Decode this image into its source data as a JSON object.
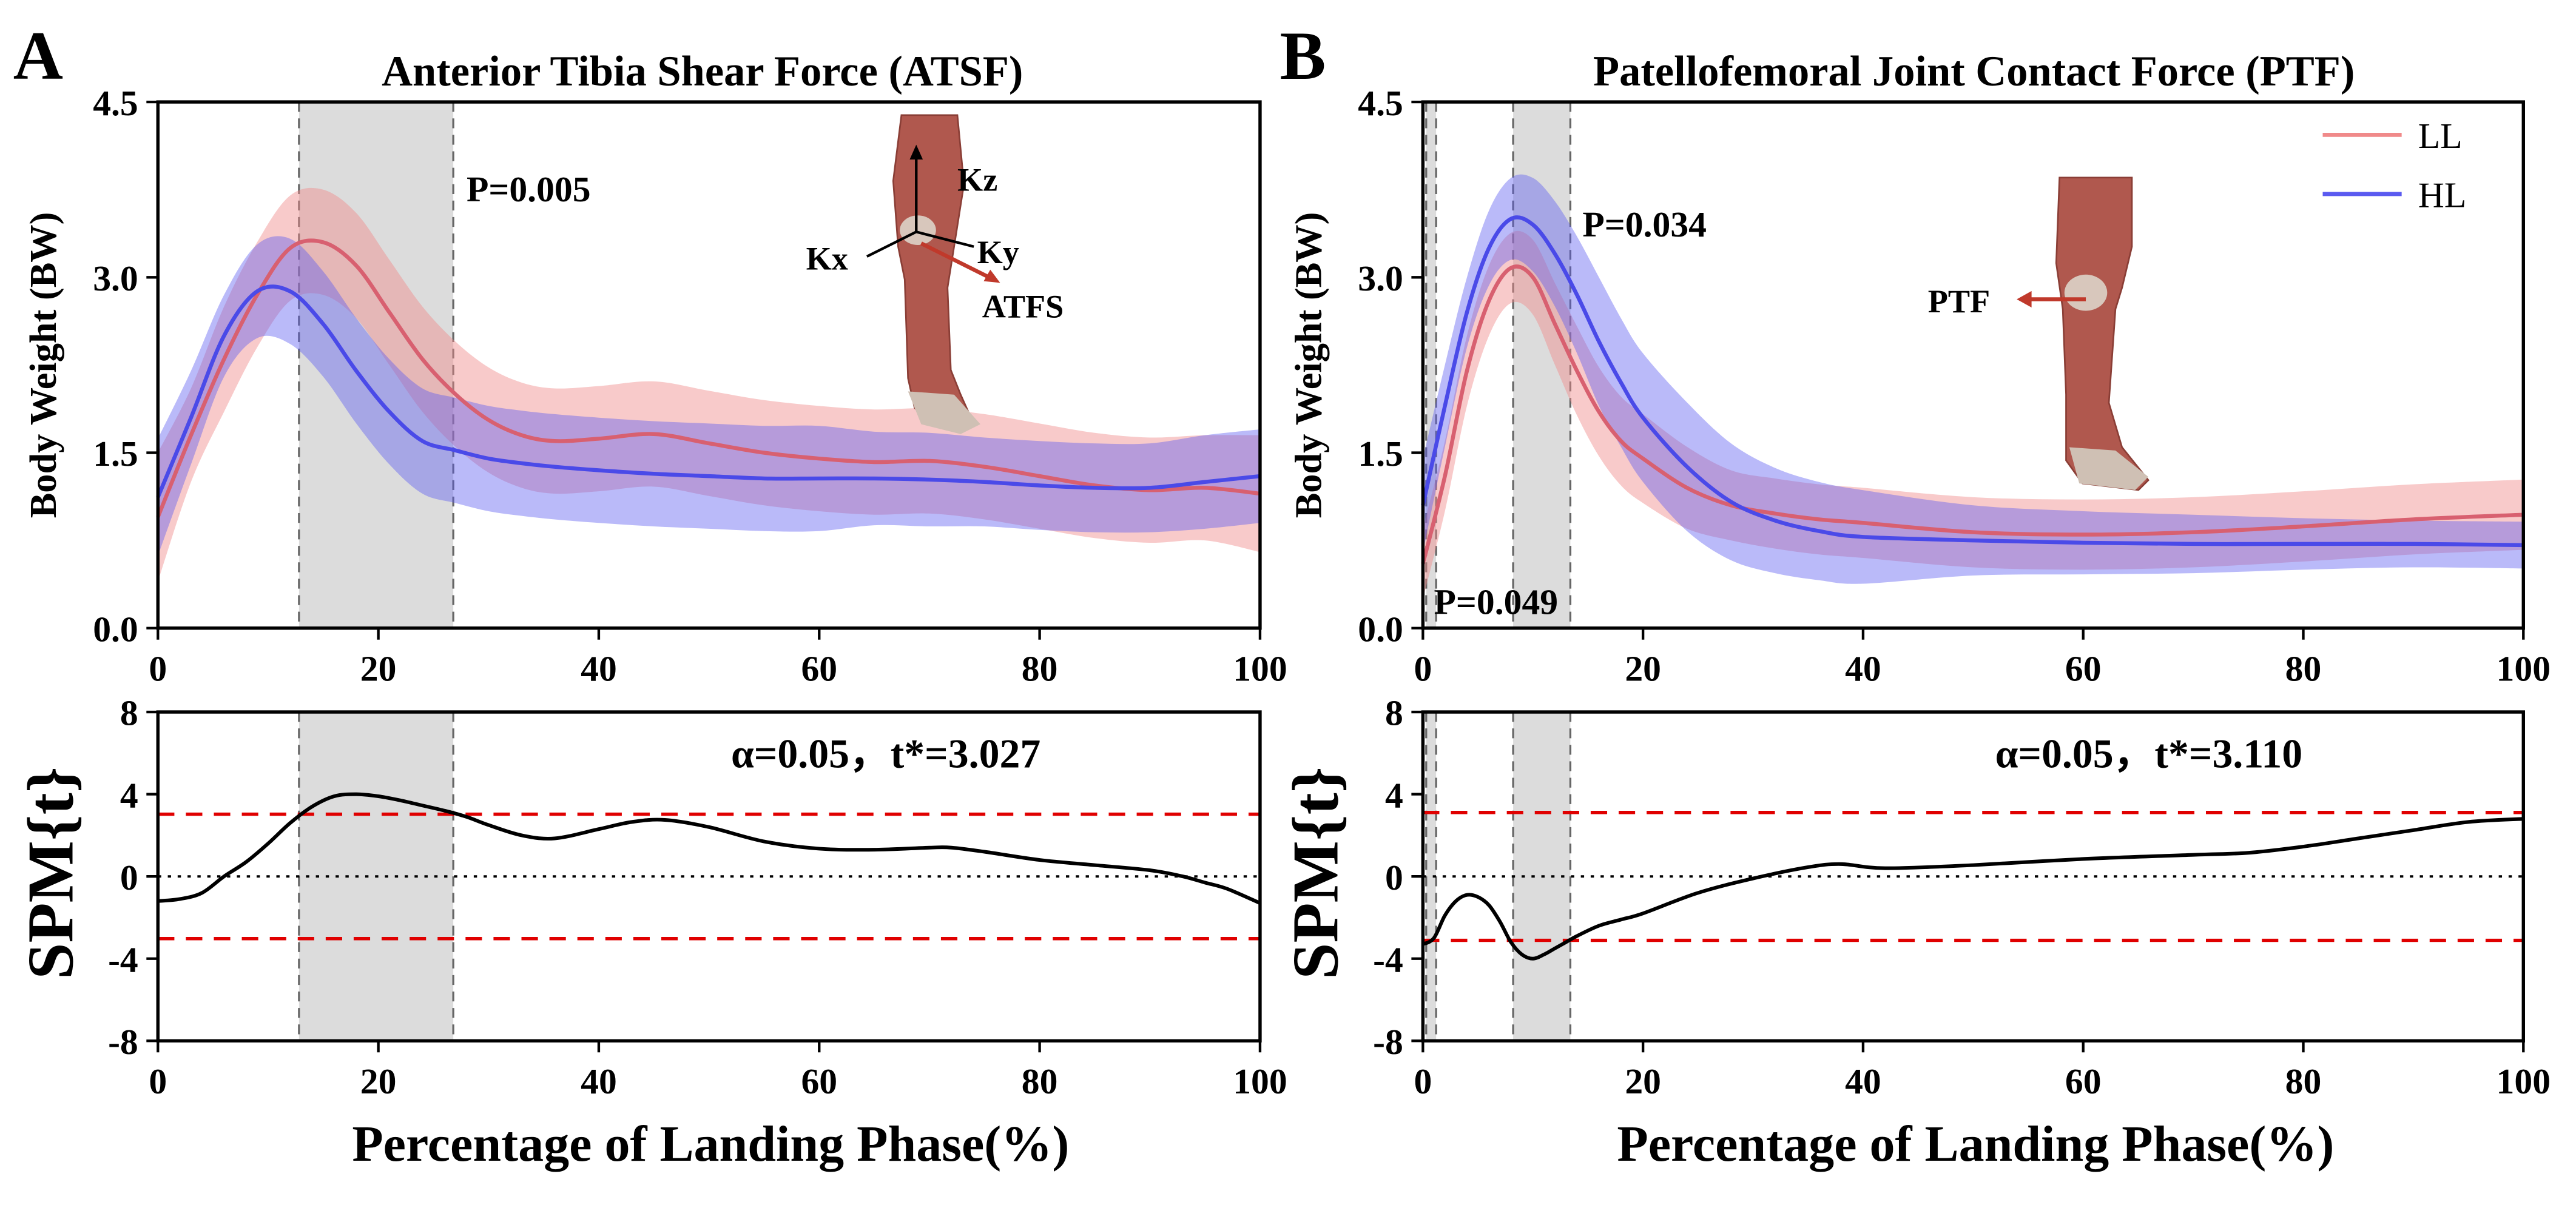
{
  "figure": {
    "left_panel_letter": "A",
    "right_panel_letter": "B",
    "x_axis_label": "Percentage of Landing Phase(%)",
    "y_axis_label_force": "Body Weight (BW)",
    "y_axis_label_spm": "SPM{t}",
    "legend": [
      {
        "name": "LL",
        "color": "#f08a8a"
      },
      {
        "name": "HL",
        "color": "#5a5af0"
      }
    ],
    "threshold_color": "#e00000",
    "shade_color": "#dcdcdc"
  },
  "chart_data": [
    {
      "type": "line",
      "panel": "A",
      "title": "Anterior Tibia Shear Force (ATSF)",
      "xlabel": "",
      "ylabel": "Body Weight (BW)",
      "xlim": [
        0,
        100
      ],
      "ylim": [
        0,
        4.5
      ],
      "xticks": [
        0,
        20,
        40,
        60,
        80,
        100
      ],
      "yticks": [
        0.0,
        1.5,
        3.0,
        4.5
      ],
      "ytick_labels": [
        "0.0",
        "1.5",
        "3.0",
        "4.5"
      ],
      "shaded_regions": [
        [
          12.8,
          26.8
        ]
      ],
      "annotations": [
        {
          "text": "P=0.005",
          "x": 28,
          "y": 3.65
        }
      ],
      "inset": {
        "labels": [
          "Kz",
          "Kx",
          "Ky",
          "ATFS"
        ]
      },
      "series": [
        {
          "name": "LL",
          "x": [
            0,
            3,
            6,
            9,
            12,
            15,
            18,
            21,
            24,
            27,
            30,
            33,
            36,
            40,
            45,
            50,
            55,
            60,
            65,
            70,
            75,
            80,
            85,
            90,
            95,
            100
          ],
          "mean": [
            0.95,
            1.65,
            2.3,
            2.85,
            3.25,
            3.3,
            3.1,
            2.7,
            2.3,
            2.0,
            1.78,
            1.65,
            1.6,
            1.62,
            1.66,
            1.58,
            1.5,
            1.45,
            1.42,
            1.43,
            1.38,
            1.3,
            1.22,
            1.18,
            1.2,
            1.15
          ],
          "sd": [
            0.55,
            0.4,
            0.45,
            0.45,
            0.45,
            0.45,
            0.45,
            0.45,
            0.45,
            0.45,
            0.45,
            0.45,
            0.45,
            0.45,
            0.45,
            0.45,
            0.45,
            0.45,
            0.45,
            0.45,
            0.45,
            0.45,
            0.45,
            0.45,
            0.45,
            0.5
          ]
        },
        {
          "name": "HL",
          "x": [
            0,
            3,
            6,
            9,
            12,
            15,
            18,
            21,
            24,
            27,
            30,
            33,
            36,
            40,
            45,
            50,
            55,
            60,
            65,
            70,
            75,
            80,
            85,
            90,
            95,
            100
          ],
          "mean": [
            1.12,
            1.8,
            2.5,
            2.88,
            2.88,
            2.6,
            2.2,
            1.85,
            1.6,
            1.52,
            1.45,
            1.41,
            1.38,
            1.35,
            1.32,
            1.3,
            1.28,
            1.28,
            1.28,
            1.27,
            1.25,
            1.22,
            1.2,
            1.2,
            1.25,
            1.3
          ],
          "sd": [
            0.5,
            0.4,
            0.35,
            0.4,
            0.45,
            0.45,
            0.45,
            0.45,
            0.45,
            0.45,
            0.45,
            0.45,
            0.45,
            0.45,
            0.45,
            0.45,
            0.45,
            0.45,
            0.4,
            0.4,
            0.38,
            0.38,
            0.38,
            0.38,
            0.4,
            0.4
          ]
        }
      ]
    },
    {
      "type": "line",
      "panel": "B",
      "title": "Patellofemoral Joint Contact Force (PTF)",
      "xlabel": "",
      "ylabel": "Body Weight (BW)",
      "xlim": [
        0,
        100
      ],
      "ylim": [
        0,
        4.5
      ],
      "xticks": [
        0,
        20,
        40,
        60,
        80,
        100
      ],
      "yticks": [
        0.0,
        1.5,
        3.0,
        4.5
      ],
      "ytick_labels": [
        "0.0",
        "1.5",
        "3.0",
        "4.5"
      ],
      "shaded_regions": [
        [
          0.3,
          1.2
        ],
        [
          8.2,
          13.4
        ]
      ],
      "annotations": [
        {
          "text": "P=0.034",
          "x": 14.5,
          "y": 3.35
        },
        {
          "text": "P=0.049",
          "x": 1.0,
          "y": 0.12
        }
      ],
      "inset": {
        "labels": [
          "PTF"
        ]
      },
      "series": [
        {
          "name": "LL",
          "x": [
            0,
            2,
            4,
            6,
            8,
            10,
            12,
            14,
            16,
            18,
            20,
            24,
            28,
            32,
            36,
            40,
            50,
            60,
            70,
            80,
            90,
            100
          ],
          "mean": [
            0.55,
            1.3,
            2.2,
            2.8,
            3.08,
            3.0,
            2.6,
            2.2,
            1.85,
            1.6,
            1.45,
            1.2,
            1.05,
            0.98,
            0.93,
            0.9,
            0.82,
            0.8,
            0.82,
            0.87,
            0.93,
            0.97
          ],
          "sd": [
            0.3,
            0.3,
            0.3,
            0.3,
            0.3,
            0.32,
            0.35,
            0.38,
            0.38,
            0.38,
            0.38,
            0.35,
            0.3,
            0.3,
            0.3,
            0.3,
            0.3,
            0.3,
            0.3,
            0.3,
            0.3,
            0.3
          ]
        },
        {
          "name": "HL",
          "x": [
            0,
            2,
            4,
            6,
            8,
            10,
            12,
            14,
            16,
            18,
            20,
            24,
            28,
            32,
            36,
            40,
            50,
            60,
            70,
            80,
            90,
            100
          ],
          "mean": [
            1.05,
            1.9,
            2.7,
            3.25,
            3.5,
            3.45,
            3.2,
            2.85,
            2.45,
            2.1,
            1.8,
            1.38,
            1.08,
            0.92,
            0.83,
            0.78,
            0.75,
            0.73,
            0.72,
            0.72,
            0.72,
            0.71
          ],
          "sd": [
            0.4,
            0.35,
            0.3,
            0.32,
            0.35,
            0.4,
            0.45,
            0.5,
            0.55,
            0.55,
            0.55,
            0.55,
            0.5,
            0.45,
            0.42,
            0.4,
            0.3,
            0.27,
            0.25,
            0.22,
            0.2,
            0.2
          ]
        }
      ]
    },
    {
      "type": "line",
      "panel": "A",
      "title": "",
      "xlabel": "Percentage of Landing Phase(%)",
      "ylabel": "SPM{t}",
      "xlim": [
        0,
        100
      ],
      "ylim": [
        -8,
        8
      ],
      "xticks": [
        0,
        20,
        40,
        60,
        80,
        100
      ],
      "yticks": [
        -8,
        -4,
        0,
        4,
        8
      ],
      "threshold": 3.027,
      "threshold_text": "α=0.05，t*=3.027",
      "shaded_regions": [
        [
          12.8,
          26.8
        ]
      ],
      "series": [
        {
          "name": "SPM{t}",
          "x": [
            0,
            2,
            4,
            6,
            8,
            10,
            12,
            14,
            16,
            18,
            20,
            22,
            24,
            26,
            28,
            30,
            33,
            36,
            40,
            43,
            46,
            50,
            55,
            60,
            65,
            70,
            72,
            75,
            80,
            85,
            90,
            93,
            95,
            97,
            100
          ],
          "values": [
            -1.2,
            -1.1,
            -0.8,
            0.0,
            0.7,
            1.6,
            2.6,
            3.4,
            3.9,
            4.0,
            3.9,
            3.7,
            3.45,
            3.2,
            2.9,
            2.5,
            2.0,
            1.85,
            2.3,
            2.65,
            2.75,
            2.4,
            1.7,
            1.35,
            1.3,
            1.4,
            1.4,
            1.2,
            0.8,
            0.55,
            0.3,
            0.0,
            -0.3,
            -0.6,
            -1.3
          ]
        }
      ]
    },
    {
      "type": "line",
      "panel": "B",
      "title": "",
      "xlabel": "Percentage of Landing Phase(%)",
      "ylabel": "SPM{t}",
      "xlim": [
        0,
        100
      ],
      "ylim": [
        -8,
        8
      ],
      "xticks": [
        0,
        20,
        40,
        60,
        80,
        100
      ],
      "yticks": [
        -8,
        -4,
        0,
        4,
        8
      ],
      "threshold": 3.11,
      "threshold_text": "α=0.05，t*=3.110",
      "shaded_regions": [
        [
          0.3,
          1.2
        ],
        [
          8.2,
          13.4
        ]
      ],
      "series": [
        {
          "name": "SPM{t}",
          "x": [
            0,
            1,
            2,
            3,
            4,
            5,
            6,
            7,
            8,
            9,
            10,
            11,
            12,
            13,
            14,
            16,
            18,
            20,
            25,
            30,
            35,
            38,
            42,
            50,
            60,
            70,
            75,
            80,
            85,
            90,
            95,
            100
          ],
          "values": [
            -3.3,
            -3.0,
            -1.9,
            -1.2,
            -0.9,
            -1.0,
            -1.4,
            -2.2,
            -3.2,
            -3.8,
            -4.0,
            -3.8,
            -3.5,
            -3.2,
            -2.9,
            -2.4,
            -2.1,
            -1.8,
            -0.8,
            -0.1,
            0.45,
            0.6,
            0.4,
            0.55,
            0.85,
            1.05,
            1.15,
            1.45,
            1.85,
            2.25,
            2.65,
            2.8
          ]
        }
      ]
    }
  ]
}
